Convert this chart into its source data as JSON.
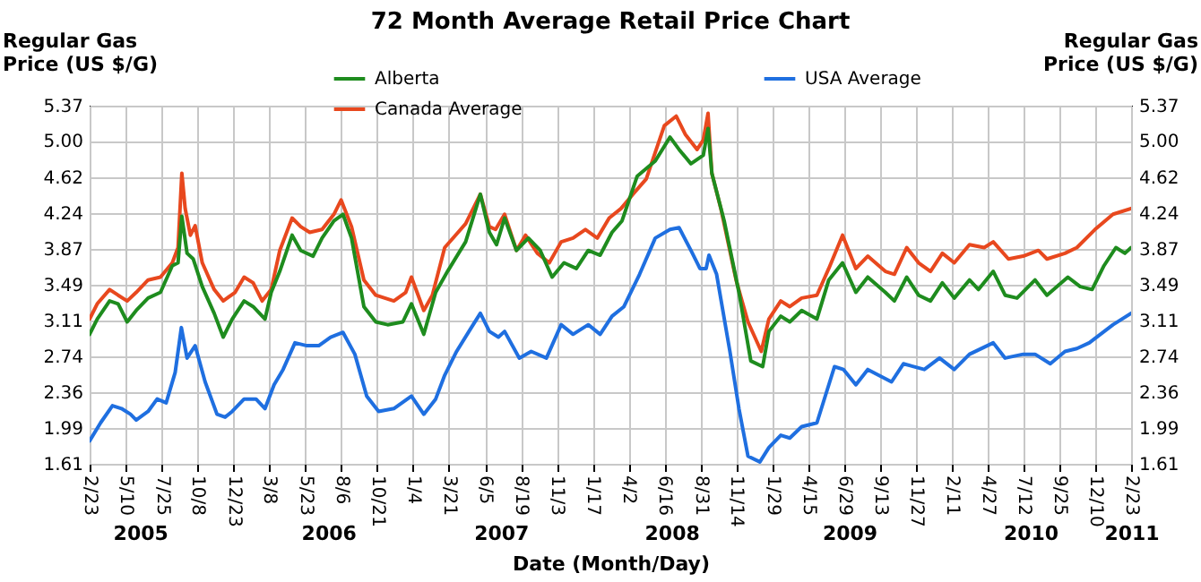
{
  "chart_data": {
    "type": "line",
    "title": "72 Month Average Retail Price Chart",
    "xlabel": "Date (Month/Day)",
    "ylabel": "Regular Gas Price (US $/G)",
    "y2label": "Regular Gas Price (US $/G)",
    "xlim": [
      "2005-02-23",
      "2011-02-23"
    ],
    "xticks": [
      {
        "value": "2005-02-23",
        "label": "2/23"
      },
      {
        "value": "2005-05-10",
        "label": "5/10"
      },
      {
        "value": "2005-07-25",
        "label": "7/25"
      },
      {
        "value": "2005-10-08",
        "label": "10/8"
      },
      {
        "value": "2005-12-23",
        "label": "12/23"
      },
      {
        "value": "2006-03-08",
        "label": "3/8"
      },
      {
        "value": "2006-05-23",
        "label": "5/23"
      },
      {
        "value": "2006-08-06",
        "label": "8/6"
      },
      {
        "value": "2006-10-21",
        "label": "10/21"
      },
      {
        "value": "2007-01-04",
        "label": "1/4"
      },
      {
        "value": "2007-03-21",
        "label": "3/21"
      },
      {
        "value": "2007-06-05",
        "label": "6/5"
      },
      {
        "value": "2007-08-19",
        "label": "8/19"
      },
      {
        "value": "2007-11-03",
        "label": "11/3"
      },
      {
        "value": "2008-01-17",
        "label": "1/17"
      },
      {
        "value": "2008-04-02",
        "label": "4/2"
      },
      {
        "value": "2008-06-16",
        "label": "6/16"
      },
      {
        "value": "2008-08-31",
        "label": "8/31"
      },
      {
        "value": "2008-11-14",
        "label": "11/14"
      },
      {
        "value": "2009-01-29",
        "label": "1/29"
      },
      {
        "value": "2009-04-15",
        "label": "4/15"
      },
      {
        "value": "2009-06-29",
        "label": "6/29"
      },
      {
        "value": "2009-09-13",
        "label": "9/13"
      },
      {
        "value": "2009-11-27",
        "label": "11/27"
      },
      {
        "value": "2010-02-11",
        "label": "2/11"
      },
      {
        "value": "2010-04-27",
        "label": "4/27"
      },
      {
        "value": "2010-07-12",
        "label": "7/12"
      },
      {
        "value": "2010-09-25",
        "label": "9/25"
      },
      {
        "value": "2010-12-10",
        "label": "12/10"
      },
      {
        "value": "2011-02-23",
        "label": "2/23"
      }
    ],
    "ylim": [
      1.61,
      5.37
    ],
    "yticks": [
      1.61,
      1.99,
      2.36,
      2.74,
      3.11,
      3.49,
      3.87,
      4.24,
      4.62,
      {
        "value": 5,
        "label": "5.00"
      },
      5.37
    ],
    "y2lim": [
      1.61,
      5.37
    ],
    "y2ticks": [
      1.61,
      1.99,
      2.36,
      2.74,
      3.11,
      3.49,
      3.87,
      4.24,
      4.62,
      {
        "value": 5,
        "label": "5.00"
      },
      5.37
    ],
    "grid": true,
    "legend": "top",
    "x2lim": [
      "2005-02-23",
      "2011-02-23"
    ],
    "x2ticks": [
      {
        "value": "2005-06-09",
        "label": "2005"
      },
      {
        "value": "2006-07-10",
        "label": "2006"
      },
      {
        "value": "2007-07-08",
        "label": "2007"
      },
      {
        "value": "2008-07-01",
        "label": "2008"
      },
      {
        "value": "2009-07-10",
        "label": "2009"
      },
      {
        "value": "2010-07-26",
        "label": "2010"
      },
      {
        "value": "2011-02-23",
        "label": "2011"
      }
    ],
    "series": [
      {
        "name": "Alberta",
        "color": "#1e8c1e",
        "x": [
          "2005-02-23",
          "2005-03-11",
          "2005-04-06",
          "2005-04-24",
          "2005-05-13",
          "2005-06-01",
          "2005-06-26",
          "2005-07-22",
          "2005-08-16",
          "2005-08-28",
          "2005-09-05",
          "2005-09-16",
          "2005-09-29",
          "2005-10-18",
          "2005-11-12",
          "2005-12-01",
          "2005-12-20",
          "2006-01-14",
          "2006-02-02",
          "2006-02-27",
          "2006-03-12",
          "2006-03-30",
          "2006-04-25",
          "2006-05-13",
          "2006-06-08",
          "2006-06-27",
          "2006-07-22",
          "2006-08-10",
          "2006-08-28",
          "2006-09-23",
          "2006-10-18",
          "2006-11-12",
          "2006-12-14",
          "2007-01-01",
          "2007-01-27",
          "2007-02-21",
          "2007-03-18",
          "2007-04-25",
          "2007-05-26",
          "2007-06-14",
          "2007-06-29",
          "2007-07-16",
          "2007-08-10",
          "2007-09-04",
          "2007-09-29",
          "2007-10-24",
          "2007-11-18",
          "2007-12-14",
          "2008-01-08",
          "2008-02-02",
          "2008-02-27",
          "2008-03-19",
          "2008-04-20",
          "2008-05-28",
          "2008-06-28",
          "2008-07-17",
          "2008-08-11",
          "2008-09-06",
          "2008-09-16",
          "2008-09-24",
          "2008-10-20",
          "2008-11-20",
          "2008-12-15",
          "2009-01-09",
          "2009-01-22",
          "2009-02-16",
          "2009-03-07",
          "2009-04-01",
          "2009-05-03",
          "2009-05-28",
          "2009-06-26",
          "2009-07-24",
          "2009-08-18",
          "2009-09-24",
          "2009-10-13",
          "2009-11-08",
          "2009-12-03",
          "2009-12-28",
          "2010-01-22",
          "2010-02-16",
          "2010-03-20",
          "2010-04-08",
          "2010-05-09",
          "2010-06-03",
          "2010-06-28",
          "2010-08-05",
          "2010-08-30",
          "2010-10-13",
          "2010-11-08",
          "2010-12-03",
          "2010-12-28",
          "2011-01-22",
          "2011-02-10",
          "2011-02-23"
        ],
        "values": [
          2.97,
          3.13,
          3.32,
          3.29,
          3.1,
          3.22,
          3.35,
          3.41,
          3.69,
          3.72,
          4.21,
          3.82,
          3.76,
          3.47,
          3.19,
          2.94,
          3.13,
          3.32,
          3.26,
          3.13,
          3.41,
          3.63,
          4.01,
          3.85,
          3.79,
          3.98,
          4.16,
          4.23,
          3.98,
          3.26,
          3.1,
          3.07,
          3.1,
          3.29,
          2.97,
          3.41,
          3.63,
          3.94,
          4.44,
          4.04,
          3.91,
          4.19,
          3.85,
          3.98,
          3.85,
          3.57,
          3.72,
          3.66,
          3.85,
          3.8,
          4.04,
          4.16,
          4.63,
          4.79,
          5.04,
          4.91,
          4.76,
          4.85,
          5.13,
          4.66,
          4.16,
          3.41,
          2.69,
          2.63,
          3.0,
          3.16,
          3.1,
          3.22,
          3.13,
          3.54,
          3.72,
          3.41,
          3.57,
          3.41,
          3.32,
          3.57,
          3.38,
          3.32,
          3.51,
          3.35,
          3.54,
          3.44,
          3.63,
          3.38,
          3.35,
          3.54,
          3.38,
          3.57,
          3.47,
          3.44,
          3.69,
          3.88,
          3.82,
          3.88
        ]
      },
      {
        "name": "Canada Average",
        "color": "#e8481e",
        "x": [
          "2005-02-23",
          "2005-03-11",
          "2005-04-06",
          "2005-04-24",
          "2005-05-13",
          "2005-06-01",
          "2005-06-26",
          "2005-07-22",
          "2005-08-16",
          "2005-08-28",
          "2005-09-05",
          "2005-09-12",
          "2005-09-23",
          "2005-10-03",
          "2005-10-18",
          "2005-11-12",
          "2005-12-01",
          "2005-12-26",
          "2006-01-14",
          "2006-02-02",
          "2006-02-21",
          "2006-03-12",
          "2006-03-30",
          "2006-04-25",
          "2006-05-13",
          "2006-06-01",
          "2006-06-27",
          "2006-07-22",
          "2006-08-06",
          "2006-08-28",
          "2006-09-23",
          "2006-10-18",
          "2006-11-25",
          "2006-12-20",
          "2007-01-01",
          "2007-01-27",
          "2007-02-14",
          "2007-03-12",
          "2007-04-25",
          "2007-05-26",
          "2007-06-14",
          "2007-06-27",
          "2007-07-16",
          "2007-08-10",
          "2007-08-29",
          "2007-09-23",
          "2007-10-18",
          "2007-11-12",
          "2007-12-07",
          "2008-01-02",
          "2008-01-27",
          "2008-02-21",
          "2008-03-17",
          "2008-04-11",
          "2008-05-09",
          "2008-06-16",
          "2008-07-11",
          "2008-07-30",
          "2008-08-24",
          "2008-09-06",
          "2008-09-16",
          "2008-09-24",
          "2008-10-13",
          "2008-11-14",
          "2008-12-09",
          "2009-01-06",
          "2009-01-22",
          "2009-02-16",
          "2009-03-07",
          "2009-04-01",
          "2009-05-03",
          "2009-05-28",
          "2009-06-26",
          "2009-07-24",
          "2009-08-18",
          "2009-09-24",
          "2009-10-13",
          "2009-11-08",
          "2009-12-03",
          "2009-12-28",
          "2010-01-22",
          "2010-02-16",
          "2010-03-20",
          "2010-04-20",
          "2010-05-09",
          "2010-06-10",
          "2010-07-11",
          "2010-08-12",
          "2010-08-30",
          "2010-10-07",
          "2010-11-01",
          "2010-12-09",
          "2011-01-16",
          "2011-02-23"
        ],
        "values": [
          3.13,
          3.29,
          3.44,
          3.38,
          3.32,
          3.41,
          3.54,
          3.57,
          3.72,
          3.88,
          4.66,
          4.29,
          4.01,
          4.11,
          3.72,
          3.44,
          3.32,
          3.41,
          3.57,
          3.51,
          3.32,
          3.44,
          3.85,
          4.19,
          4.1,
          4.04,
          4.07,
          4.23,
          4.38,
          4.1,
          3.54,
          3.38,
          3.32,
          3.41,
          3.57,
          3.22,
          3.38,
          3.88,
          4.13,
          4.44,
          4.1,
          4.07,
          4.23,
          3.85,
          4.01,
          3.82,
          3.72,
          3.94,
          3.98,
          4.07,
          3.98,
          4.19,
          4.29,
          4.44,
          4.6,
          5.16,
          5.26,
          5.07,
          4.91,
          5.01,
          5.29,
          4.66,
          4.29,
          3.54,
          3.1,
          2.79,
          3.13,
          3.32,
          3.26,
          3.35,
          3.38,
          3.66,
          4.01,
          3.66,
          3.79,
          3.63,
          3.6,
          3.88,
          3.72,
          3.63,
          3.82,
          3.72,
          3.91,
          3.88,
          3.94,
          3.76,
          3.79,
          3.85,
          3.76,
          3.82,
          3.88,
          4.07,
          4.23,
          4.29
        ]
      },
      {
        "name": "USA Average",
        "color": "#1f6fe0",
        "x": [
          "2005-02-23",
          "2005-03-18",
          "2005-04-12",
          "2005-05-01",
          "2005-05-20",
          "2005-06-01",
          "2005-06-26",
          "2005-07-15",
          "2005-08-03",
          "2005-08-22",
          "2005-09-04",
          "2005-09-16",
          "2005-10-03",
          "2005-10-24",
          "2005-11-18",
          "2005-12-05",
          "2005-12-20",
          "2006-01-14",
          "2006-02-08",
          "2006-02-27",
          "2006-03-18",
          "2006-04-06",
          "2006-05-01",
          "2006-05-26",
          "2006-06-20",
          "2006-07-15",
          "2006-08-10",
          "2006-09-04",
          "2006-09-29",
          "2006-10-24",
          "2006-11-25",
          "2007-01-01",
          "2007-01-27",
          "2007-02-21",
          "2007-03-12",
          "2007-04-06",
          "2007-05-07",
          "2007-05-26",
          "2007-06-14",
          "2007-07-03",
          "2007-07-16",
          "2007-08-16",
          "2007-09-10",
          "2007-10-12",
          "2007-11-12",
          "2007-12-07",
          "2008-01-08",
          "2008-02-02",
          "2008-02-27",
          "2008-03-23",
          "2008-04-25",
          "2008-05-28",
          "2008-06-28",
          "2008-07-17",
          "2008-08-11",
          "2008-08-30",
          "2008-09-12",
          "2008-09-18",
          "2008-10-04",
          "2008-11-01",
          "2008-11-20",
          "2008-12-09",
          "2009-01-03",
          "2009-01-22",
          "2009-02-16",
          "2009-03-07",
          "2009-04-01",
          "2009-05-03",
          "2009-06-09",
          "2009-06-28",
          "2009-07-24",
          "2009-08-18",
          "2009-10-07",
          "2009-11-01",
          "2009-12-15",
          "2010-01-16",
          "2010-02-16",
          "2010-03-20",
          "2010-05-09",
          "2010-06-03",
          "2010-07-11",
          "2010-08-05",
          "2010-09-06",
          "2010-10-07",
          "2010-11-01",
          "2010-11-27",
          "2011-01-16",
          "2011-02-23"
        ],
        "values": [
          1.85,
          2.04,
          2.22,
          2.19,
          2.13,
          2.07,
          2.16,
          2.29,
          2.25,
          2.57,
          3.04,
          2.72,
          2.85,
          2.47,
          2.13,
          2.1,
          2.16,
          2.29,
          2.29,
          2.19,
          2.44,
          2.6,
          2.88,
          2.85,
          2.85,
          2.94,
          2.99,
          2.76,
          2.32,
          2.16,
          2.19,
          2.32,
          2.13,
          2.29,
          2.54,
          2.79,
          3.04,
          3.19,
          3.0,
          2.94,
          3.0,
          2.72,
          2.79,
          2.72,
          3.07,
          2.97,
          3.07,
          2.97,
          3.16,
          3.26,
          3.6,
          3.98,
          4.07,
          4.09,
          3.85,
          3.66,
          3.66,
          3.8,
          3.6,
          2.79,
          2.19,
          1.69,
          1.63,
          1.78,
          1.91,
          1.88,
          2.0,
          2.04,
          2.63,
          2.6,
          2.44,
          2.6,
          2.47,
          2.66,
          2.6,
          2.72,
          2.6,
          2.76,
          2.88,
          2.72,
          2.76,
          2.76,
          2.66,
          2.79,
          2.82,
          2.88,
          3.07,
          3.19
        ]
      }
    ]
  }
}
